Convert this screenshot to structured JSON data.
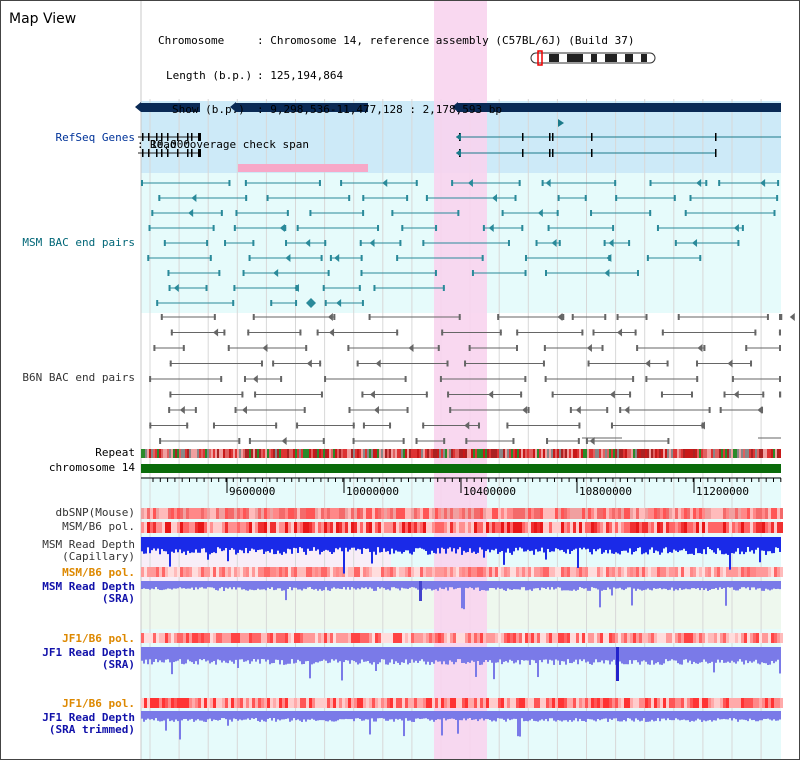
{
  "window": {
    "title": "Map View"
  },
  "info": {
    "chromosome_key": "Chromosome",
    "chromosome_val": ": Chromosome 14, reference assembly (C57BL/6J) (Build 37)",
    "length_key": "Length (b.p.)",
    "length_val": ": 125,194,864",
    "show_key": "Show (b.p.)",
    "show_val": ": 9,298,536-11,477,128 : 2,178,593 bp",
    "coverage_key": "Read coverage check span",
    "coverage_val": ": 10,000"
  },
  "tracks": {
    "refseq": "RefSeq Genes",
    "msm_bac": "MSM BAC end pairs",
    "b6n_bac": "B6N BAC end pairs",
    "repeat": "Repeat",
    "chromosome": "chromosome 14",
    "dbsnp": "dbSNP(Mouse)",
    "msm_pol": "MSM/B6 pol.",
    "msm_depth_cap_1": "MSM Read Depth",
    "msm_depth_cap_2": "(Capillary)",
    "msm_pol_2": "MSM/B6 pol.",
    "msm_depth_sra_1": "MSM Read Depth",
    "msm_depth_sra_2": "(SRA)",
    "jf1_pol": "JF1/B6 pol.",
    "jf1_depth_sra_1": "JF1 Read Depth",
    "jf1_depth_sra_2": "(SRA)",
    "jf1_pol_2": "JF1/B6 pol.",
    "jf1_depth_trim_1": "JF1 Read Depth",
    "jf1_depth_trim_2": "(SRA trimmed)"
  },
  "axis": {
    "ticks": [
      "9600000",
      "10000000",
      "10400000",
      "10800000",
      "11200000"
    ]
  },
  "colors": {
    "navy": "#0a2a55",
    "teal": "#1a7a8a",
    "pink_bar": "#f7a8c8",
    "highlight": "#f8d4ee",
    "chromosome": "#0a6b0a",
    "refseq_bg": "#cdeaf8",
    "bac_bg": "#e6fbfb",
    "depth_blue": "#1a2ae8",
    "depth_light": "#7a7ae8"
  }
}
